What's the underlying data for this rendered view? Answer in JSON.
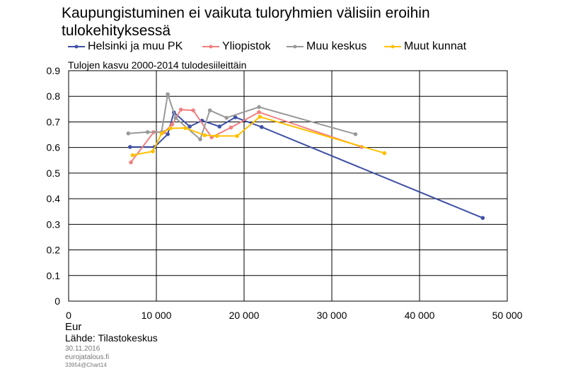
{
  "chart_data": {
    "type": "line",
    "title": "Kaupungistuminen ei vaikuta tuloryhmien välisiin eroihin tulokehityksessä",
    "subtitle": "Tulojen kasvu 2000-2014 tulodesiileittäin",
    "xlabel": "Eur",
    "ylabel": "",
    "xlim": [
      0,
      50000
    ],
    "ylim": [
      0,
      0.9
    ],
    "x_ticks": [
      "0",
      "10 000",
      "20 000",
      "30 000",
      "40 000",
      "50 000"
    ],
    "y_ticks": [
      "0",
      "0.1",
      "0.2",
      "0.3",
      "0.4",
      "0.5",
      "0.6",
      "0.7",
      "0.8",
      "0.9"
    ],
    "grid": true,
    "legend_position": "top",
    "series": [
      {
        "name": "Helsinki ja muu PK",
        "color": "#3F51A5",
        "x": [
          7000,
          9800,
          11300,
          12000,
          13800,
          15200,
          17200,
          19000,
          22000,
          47200
        ],
        "y": [
          0.602,
          0.602,
          0.652,
          0.737,
          0.682,
          0.705,
          0.682,
          0.718,
          0.68,
          0.325
        ]
      },
      {
        "name": "Yliopistok",
        "color": "#F08080",
        "x": [
          7100,
          9700,
          10900,
          11800,
          12800,
          14200,
          16300,
          18500,
          21700,
          33400
        ],
        "y": [
          0.542,
          0.66,
          0.66,
          0.69,
          0.748,
          0.745,
          0.64,
          0.678,
          0.738,
          0.602
        ]
      },
      {
        "name": "Muu keskus",
        "color": "#999999",
        "x": [
          6800,
          9000,
          10600,
          11300,
          12200,
          15000,
          16100,
          18000,
          21700,
          32700
        ],
        "y": [
          0.655,
          0.66,
          0.66,
          0.808,
          0.715,
          0.632,
          0.745,
          0.716,
          0.758,
          0.652
        ]
      },
      {
        "name": "Muut kunnat",
        "color": "#FFC000",
        "x": [
          7300,
          9600,
          10600,
          11600,
          13300,
          15500,
          16900,
          19200,
          21800,
          36000
        ],
        "y": [
          0.57,
          0.585,
          0.655,
          0.675,
          0.676,
          0.648,
          0.645,
          0.645,
          0.72,
          0.578
        ]
      }
    ]
  },
  "footer": {
    "source": "Lähde: Tilastokeskus",
    "date": "30.11.2016",
    "site": "eurojatalous.fi",
    "code": "33954@Chart14"
  }
}
